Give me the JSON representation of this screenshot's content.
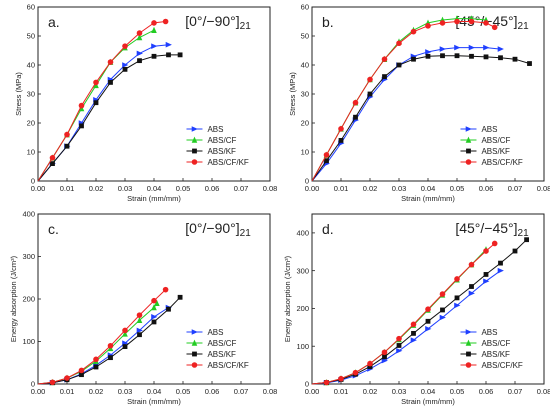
{
  "series_colors": {
    "ABS": "#1f3fff",
    "ABS/CF": "#22cc22",
    "ABS/KF": "#111111",
    "ABS/CF/KF": "#ee2222"
  },
  "chart_data": [
    {
      "type": "line",
      "panel_label": "a.",
      "orientation_label": "[0°/−90°]21",
      "xlabel": "Strain (mm/mm)",
      "ylabel": "Stress (MPa)",
      "xlim": [
        0.0,
        0.08
      ],
      "ylim": [
        0,
        60
      ],
      "xticks": [
        0.0,
        0.01,
        0.02,
        0.03,
        0.04,
        0.05,
        0.06,
        0.07,
        0.08
      ],
      "xtick_labels": [
        "0.00",
        "0.01",
        "0.02",
        "0.03",
        "0.04",
        "0.05",
        "0.06",
        "0.07",
        "0.08"
      ],
      "yticks": [
        0,
        10,
        20,
        30,
        40,
        50,
        60
      ],
      "ytick_labels": [
        "0",
        "10",
        "20",
        "30",
        "40",
        "50",
        "60"
      ],
      "legend_position": "bottom-right",
      "series": [
        {
          "name": "ABS",
          "x": [
            0.0,
            0.005,
            0.01,
            0.015,
            0.02,
            0.025,
            0.03,
            0.035,
            0.04,
            0.045
          ],
          "y": [
            0,
            6,
            12,
            20,
            28,
            35,
            40,
            44,
            46.5,
            47
          ]
        },
        {
          "name": "ABS/CF",
          "x": [
            0.0,
            0.005,
            0.01,
            0.015,
            0.02,
            0.025,
            0.03,
            0.035,
            0.04
          ],
          "y": [
            0,
            8,
            16,
            25,
            33,
            41,
            46,
            49.5,
            52
          ]
        },
        {
          "name": "ABS/KF",
          "x": [
            0.0,
            0.005,
            0.01,
            0.015,
            0.02,
            0.025,
            0.03,
            0.035,
            0.04,
            0.045,
            0.049
          ],
          "y": [
            0,
            6,
            12,
            19,
            27,
            34,
            38.5,
            41.5,
            43,
            43.5,
            43.5
          ]
        },
        {
          "name": "ABS/CF/KF",
          "x": [
            0.0,
            0.005,
            0.01,
            0.015,
            0.02,
            0.025,
            0.03,
            0.035,
            0.04,
            0.044
          ],
          "y": [
            0,
            8,
            16,
            26,
            34,
            41,
            46.5,
            51,
            54.5,
            55
          ]
        }
      ]
    },
    {
      "type": "line",
      "panel_label": "b.",
      "orientation_label": "[45°/−45°]21",
      "xlabel": "Strain (mm/mm)",
      "ylabel": "Stress (MPa)",
      "xlim": [
        0.0,
        0.08
      ],
      "ylim": [
        0,
        60
      ],
      "xticks": [
        0.0,
        0.01,
        0.02,
        0.03,
        0.04,
        0.05,
        0.06,
        0.07,
        0.08
      ],
      "xtick_labels": [
        "0.00",
        "0.01",
        "0.02",
        "0.03",
        "0.04",
        "0.05",
        "0.06",
        "0.07",
        "0.08"
      ],
      "yticks": [
        0,
        10,
        20,
        30,
        40,
        50,
        60
      ],
      "ytick_labels": [
        "0",
        "10",
        "20",
        "30",
        "40",
        "50",
        "60"
      ],
      "legend_position": "bottom-right",
      "series": [
        {
          "name": "ABS",
          "x": [
            0.0,
            0.005,
            0.01,
            0.015,
            0.02,
            0.025,
            0.03,
            0.035,
            0.04,
            0.045,
            0.05,
            0.055,
            0.06,
            0.065
          ],
          "y": [
            0,
            6,
            13,
            21,
            29,
            35,
            40,
            43,
            44.5,
            45.5,
            46,
            46,
            46,
            45.5
          ]
        },
        {
          "name": "ABS/CF",
          "x": [
            0.0,
            0.005,
            0.01,
            0.015,
            0.02,
            0.025,
            0.03,
            0.035,
            0.04,
            0.045,
            0.05,
            0.055,
            0.06
          ],
          "y": [
            0,
            9,
            18,
            27,
            35,
            42,
            48,
            52,
            54.5,
            55.5,
            56,
            56,
            55.5
          ]
        },
        {
          "name": "ABS/KF",
          "x": [
            0.0,
            0.005,
            0.01,
            0.015,
            0.02,
            0.025,
            0.03,
            0.035,
            0.04,
            0.045,
            0.05,
            0.055,
            0.06,
            0.065,
            0.07,
            0.075
          ],
          "y": [
            0,
            7,
            14,
            22,
            30,
            36,
            40,
            42,
            43,
            43.2,
            43.2,
            43,
            42.8,
            42.5,
            42,
            40.5
          ]
        },
        {
          "name": "ABS/CF/KF",
          "x": [
            0.0,
            0.005,
            0.01,
            0.015,
            0.02,
            0.025,
            0.03,
            0.035,
            0.04,
            0.045,
            0.05,
            0.055,
            0.06,
            0.063
          ],
          "y": [
            0,
            9,
            18,
            27,
            35,
            42,
            47.5,
            51.5,
            53.5,
            54.5,
            55,
            55,
            54.5,
            53
          ]
        }
      ]
    },
    {
      "type": "line",
      "panel_label": "c.",
      "orientation_label": "[0°/−90°]21",
      "xlabel": "Strain (mm/mm)",
      "ylabel": "Energy absorption (J/cm³)",
      "xlim": [
        0.0,
        0.08
      ],
      "ylim": [
        0,
        400
      ],
      "xticks": [
        0.0,
        0.01,
        0.02,
        0.03,
        0.04,
        0.05,
        0.06,
        0.07,
        0.08
      ],
      "xtick_labels": [
        "0.00",
        "0.01",
        "0.02",
        "0.03",
        "0.04",
        "0.05",
        "0.06",
        "0.07",
        "0.08"
      ],
      "yticks": [
        0,
        100,
        200,
        300,
        400
      ],
      "ytick_labels": [
        "0",
        "100",
        "200",
        "300",
        "400"
      ],
      "legend_position": "bottom-right",
      "series": [
        {
          "name": "ABS",
          "x": [
            0.0,
            0.005,
            0.01,
            0.015,
            0.02,
            0.025,
            0.03,
            0.035,
            0.04,
            0.045
          ],
          "y": [
            0,
            3,
            10,
            24,
            44,
            68,
            96,
            126,
            158,
            180
          ]
        },
        {
          "name": "ABS/CF",
          "x": [
            0.0,
            0.005,
            0.01,
            0.015,
            0.02,
            0.025,
            0.03,
            0.035,
            0.04,
            0.041
          ],
          "y": [
            0,
            4,
            14,
            30,
            54,
            84,
            118,
            150,
            180,
            190
          ]
        },
        {
          "name": "ABS/KF",
          "x": [
            0.0,
            0.005,
            0.01,
            0.015,
            0.02,
            0.025,
            0.03,
            0.035,
            0.04,
            0.045,
            0.049
          ],
          "y": [
            0,
            3,
            10,
            22,
            40,
            62,
            88,
            116,
            146,
            176,
            204
          ]
        },
        {
          "name": "ABS/CF/KF",
          "x": [
            0.0,
            0.005,
            0.01,
            0.015,
            0.02,
            0.025,
            0.03,
            0.035,
            0.04,
            0.044
          ],
          "y": [
            0,
            4,
            14,
            32,
            58,
            90,
            126,
            162,
            196,
            222
          ]
        }
      ]
    },
    {
      "type": "line",
      "panel_label": "d.",
      "orientation_label": "[45°/−45°]21",
      "xlabel": "Strain (mm/mm)",
      "ylabel": "Energy absorption (J/cm³)",
      "xlim": [
        0.0,
        0.08
      ],
      "ylim": [
        0,
        450
      ],
      "xticks": [
        0.0,
        0.01,
        0.02,
        0.03,
        0.04,
        0.05,
        0.06,
        0.07,
        0.08
      ],
      "xtick_labels": [
        "0.00",
        "0.01",
        "0.02",
        "0.03",
        "0.04",
        "0.05",
        "0.06",
        "0.07",
        "0.08"
      ],
      "yticks": [
        0,
        100,
        200,
        300,
        400
      ],
      "ytick_labels": [
        "0",
        "100",
        "200",
        "300",
        "400"
      ],
      "legend_position": "bottom-right",
      "series": [
        {
          "name": "ABS",
          "x": [
            0.0,
            0.005,
            0.01,
            0.015,
            0.02,
            0.025,
            0.03,
            0.035,
            0.04,
            0.045,
            0.05,
            0.055,
            0.06,
            0.065
          ],
          "y": [
            0,
            3,
            10,
            22,
            40,
            62,
            88,
            116,
            146,
            176,
            208,
            240,
            272,
            300
          ]
        },
        {
          "name": "ABS/CF",
          "x": [
            0.0,
            0.005,
            0.01,
            0.015,
            0.02,
            0.025,
            0.03,
            0.035,
            0.04,
            0.045,
            0.05,
            0.055,
            0.06
          ],
          "y": [
            0,
            4,
            14,
            30,
            54,
            84,
            118,
            156,
            196,
            236,
            276,
            316,
            356
          ]
        },
        {
          "name": "ABS/KF",
          "x": [
            0.0,
            0.005,
            0.01,
            0.015,
            0.02,
            0.025,
            0.03,
            0.035,
            0.04,
            0.045,
            0.05,
            0.055,
            0.06,
            0.065,
            0.07,
            0.074
          ],
          "y": [
            0,
            4,
            12,
            26,
            46,
            72,
            102,
            134,
            166,
            196,
            228,
            258,
            290,
            320,
            352,
            382
          ]
        },
        {
          "name": "ABS/CF/KF",
          "x": [
            0.0,
            0.005,
            0.01,
            0.015,
            0.02,
            0.025,
            0.03,
            0.035,
            0.04,
            0.045,
            0.05,
            0.055,
            0.06,
            0.063
          ],
          "y": [
            0,
            4,
            14,
            30,
            54,
            84,
            120,
            158,
            198,
            238,
            278,
            316,
            352,
            372
          ]
        }
      ]
    }
  ]
}
